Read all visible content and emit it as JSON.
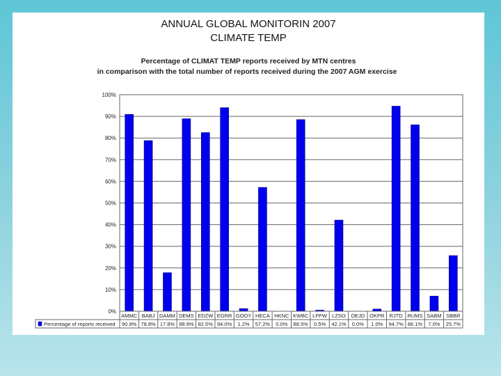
{
  "slide": {
    "title_line1": "ANNUAL GLOBAL MONITORIN 2007",
    "title_line2": "CLIMATE TEMP"
  },
  "chart_data": {
    "type": "bar",
    "title_line1": "Percentage of CLIMAT TEMP reports received by MTN centres",
    "title_line2": "in comparison with the total number of reports received during the 2007 AGM exercise",
    "categories": [
      "AMMC",
      "BABJ",
      "DAMM",
      "DEMS",
      "EDZW",
      "EGRR",
      "GOOY",
      "HECA",
      "HKNC",
      "KWBC",
      "LFPW",
      "LZSO",
      "OEJD",
      "OKPR",
      "RJTD",
      "RUMS",
      "SABM",
      "SBBR"
    ],
    "series": [
      {
        "name": "Percentage of reports received",
        "values": [
          90.9,
          78.8,
          17.8,
          88.9,
          82.5,
          94.0,
          1.2,
          57.2,
          0.0,
          88.5,
          0.5,
          42.1,
          0.0,
          1.0,
          94.7,
          86.1,
          7.0,
          25.7
        ],
        "labels": [
          "90.9%",
          "78.8%",
          "17.8%",
          "88.9%",
          "82.5%",
          "94.0%",
          "1.2%",
          "57.2%",
          "0.0%",
          "88.5%",
          "0.5%",
          "42.1%",
          "0.0%",
          "1.0%",
          "94.7%",
          "86.1%",
          "7.0%",
          "25.7%"
        ],
        "color": "#0000ee"
      }
    ],
    "yticks": [
      "0%",
      "10%",
      "20%",
      "30%",
      "40%",
      "50%",
      "60%",
      "70%",
      "80%",
      "90%",
      "100%"
    ],
    "ylim": [
      0,
      100
    ],
    "grid": true,
    "legend_position": "bottom-table"
  }
}
